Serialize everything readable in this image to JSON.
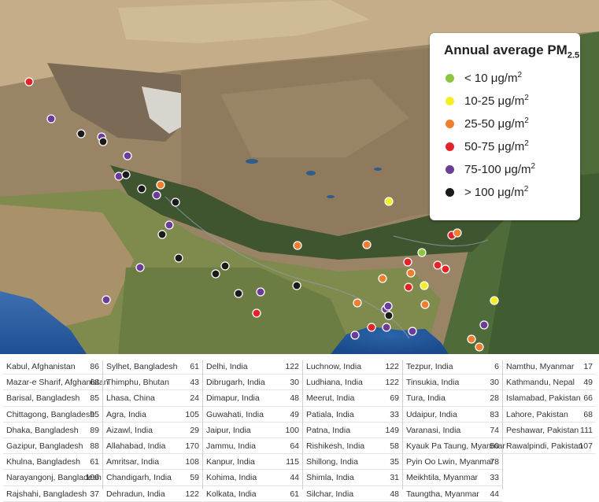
{
  "legend": {
    "title": "Annual average PM",
    "title_sub": "2.5",
    "unit_base": "μg/m",
    "unit_sup": "2",
    "items": [
      {
        "label": "< 10",
        "color": "#8cc63f"
      },
      {
        "label": "10-25",
        "color": "#f3ef24"
      },
      {
        "label": "25-50",
        "color": "#f07e2e"
      },
      {
        "label": "50-75",
        "color": "#e3222a"
      },
      {
        "label": "75-100",
        "color": "#6d3b98"
      },
      {
        "label": "> 100",
        "color": "#1a1a1a"
      }
    ]
  },
  "table": {
    "columns": [
      [
        {
          "name": "Kabul, Afghanistan",
          "value": "86"
        },
        {
          "name": "Mazar-e Sharif, Afghanistan",
          "value": "68"
        },
        {
          "name": "Barisal, Bangladesh",
          "value": "85"
        },
        {
          "name": "Chittagong, Bangladesh",
          "value": "95"
        },
        {
          "name": "Dhaka, Bangladesh",
          "value": "89"
        },
        {
          "name": "Gazipur, Bangladesh",
          "value": "88"
        },
        {
          "name": "Khulna, Bangladesh",
          "value": "61"
        },
        {
          "name": "Narayangonj, Bangladesh",
          "value": "106"
        },
        {
          "name": "Rajshahi, Bangladesh",
          "value": "37"
        }
      ],
      [
        {
          "name": "Sylhet, Bangladesh",
          "value": "61"
        },
        {
          "name": "Thimphu, Bhutan",
          "value": "43"
        },
        {
          "name": "Lhasa, China",
          "value": "24"
        },
        {
          "name": "Agra, India",
          "value": "105"
        },
        {
          "name": "Aizawl, India",
          "value": "29"
        },
        {
          "name": "Allahabad, India",
          "value": "170"
        },
        {
          "name": "Amritsar, India",
          "value": "108"
        },
        {
          "name": "Chandigarh, India",
          "value": "59"
        },
        {
          "name": "Dehradun, India",
          "value": "122"
        }
      ],
      [
        {
          "name": "Delhi, India",
          "value": "122"
        },
        {
          "name": "Dibrugarh, India",
          "value": "30"
        },
        {
          "name": "Dimapur, India",
          "value": "48"
        },
        {
          "name": "Guwahati, India",
          "value": "49"
        },
        {
          "name": "Jaipur, India",
          "value": "100"
        },
        {
          "name": "Jammu, India",
          "value": "64"
        },
        {
          "name": "Kanpur, India",
          "value": "115"
        },
        {
          "name": "Kohima, India",
          "value": "44"
        },
        {
          "name": "Kolkata, India",
          "value": "61"
        }
      ],
      [
        {
          "name": "Luchnow, India",
          "value": "122"
        },
        {
          "name": "Ludhiana, India",
          "value": "122"
        },
        {
          "name": "Meerut, India",
          "value": "69"
        },
        {
          "name": "Patiala, India",
          "value": "33"
        },
        {
          "name": "Patna, India",
          "value": "149"
        },
        {
          "name": "Rishikesh, India",
          "value": "58"
        },
        {
          "name": "Shillong, India",
          "value": "35"
        },
        {
          "name": "Shimla, India",
          "value": "31"
        },
        {
          "name": "Silchar, India",
          "value": "48"
        }
      ],
      [
        {
          "name": "Tezpur, India",
          "value": "6"
        },
        {
          "name": "Tinsukia, India",
          "value": "30"
        },
        {
          "name": "Tura, India",
          "value": "28"
        },
        {
          "name": "Udaipur, India",
          "value": "83"
        },
        {
          "name": "Varanasi, India",
          "value": "74"
        },
        {
          "name": "Kyauk Pa Taung, Myanmar",
          "value": "50"
        },
        {
          "name": "Pyin Oo Lwin, Myanmar",
          "value": "78"
        },
        {
          "name": "Meikhtila, Myanmar",
          "value": "33"
        },
        {
          "name": "Taungtha, Myanmar",
          "value": "44"
        }
      ],
      [
        {
          "name": "Namthu, Myanmar",
          "value": "17"
        },
        {
          "name": "Kathmandu, Nepal",
          "value": "49"
        },
        {
          "name": "Islamabad, Pakistan",
          "value": "66"
        },
        {
          "name": "Lahore, Pakistan",
          "value": "68"
        },
        {
          "name": "Peshawar, Pakistan",
          "value": "111"
        },
        {
          "name": "Rawalpindi, Pakistan",
          "value": "107"
        }
      ]
    ]
  }
}
